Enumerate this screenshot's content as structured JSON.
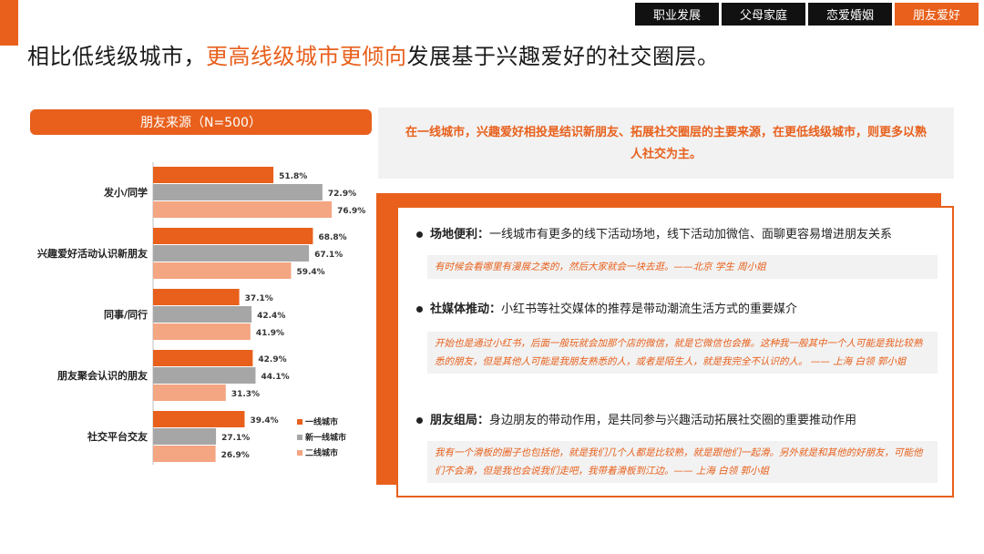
{
  "tabs": [
    {
      "label": "职业发展",
      "active": false
    },
    {
      "label": "父母家庭",
      "active": false
    },
    {
      "label": "恋爱婚姻",
      "active": false
    },
    {
      "label": "朋友爱好",
      "active": true
    }
  ],
  "title": {
    "part1": "相比低线级城市，",
    "highlight": "更高线级城市更倾向",
    "part2": "发展基于兴趣爱好的社交圈层。"
  },
  "chart_header": "朋友来源（N=500）",
  "summary": "在一线城市，兴趣爱好相投是结识新朋友、拓展社交圈层的主要来源，在更低线级城市，则更多以熟人社交为主。",
  "findings": [
    {
      "heading": "场地便利：",
      "text": "一线城市有更多的线下活动场地，线下活动加微信、面聊更容易增进朋友关系",
      "quote": "有时候会看哪里有漫展之类的，然后大家就会一块去逛。——北京 学生 周小姐"
    },
    {
      "heading": "社媒体推动：",
      "text": "小红书等社交媒体的推荐是带动潮流生活方式的重要媒介",
      "quote": "开始也是通过小红书，后面一般玩就会加那个店的微信，就是它微信也会推。这种我一般其中一个人可能是我比较熟悉的朋友，但是其他人可能是我朋友熟悉的人，或者是陌生人，就是我完全不认识的人。 —— 上海 白领 郭小姐"
    },
    {
      "heading": "朋友组局：",
      "text": "身边朋友的带动作用，是共同参与兴趣活动拓展社交圈的重要推动作用",
      "quote": "我有一个滑板的圈子也包括他，就是我们几个人都是比较熟，就是跟他们一起滑。另外就是和其他的好朋友，可能他们不会滑，但是我也会说我们走吧，我带着滑板到江边。—— 上海 白领 郭小姐"
    }
  ],
  "chart_data": {
    "type": "bar",
    "orientation": "horizontal",
    "categories": [
      "发小/同学",
      "兴趣爱好活动认识新朋友",
      "同事/同行",
      "朋友聚会认识的朋友",
      "社交平台交友"
    ],
    "series": [
      {
        "name": "一线城市",
        "values": [
          51.8,
          68.8,
          37.1,
          42.9,
          39.4
        ],
        "color": "#E8601C"
      },
      {
        "name": "新一线城市",
        "values": [
          72.9,
          67.1,
          42.4,
          44.1,
          27.1
        ],
        "color": "#A6A6A6"
      },
      {
        "name": "二线城市",
        "values": [
          76.9,
          59.4,
          41.9,
          31.3,
          26.9
        ],
        "color": "#F4A582"
      }
    ],
    "value_suffix": "%",
    "xlim": [
      0,
      100
    ],
    "legend_position": "bottom-right"
  }
}
